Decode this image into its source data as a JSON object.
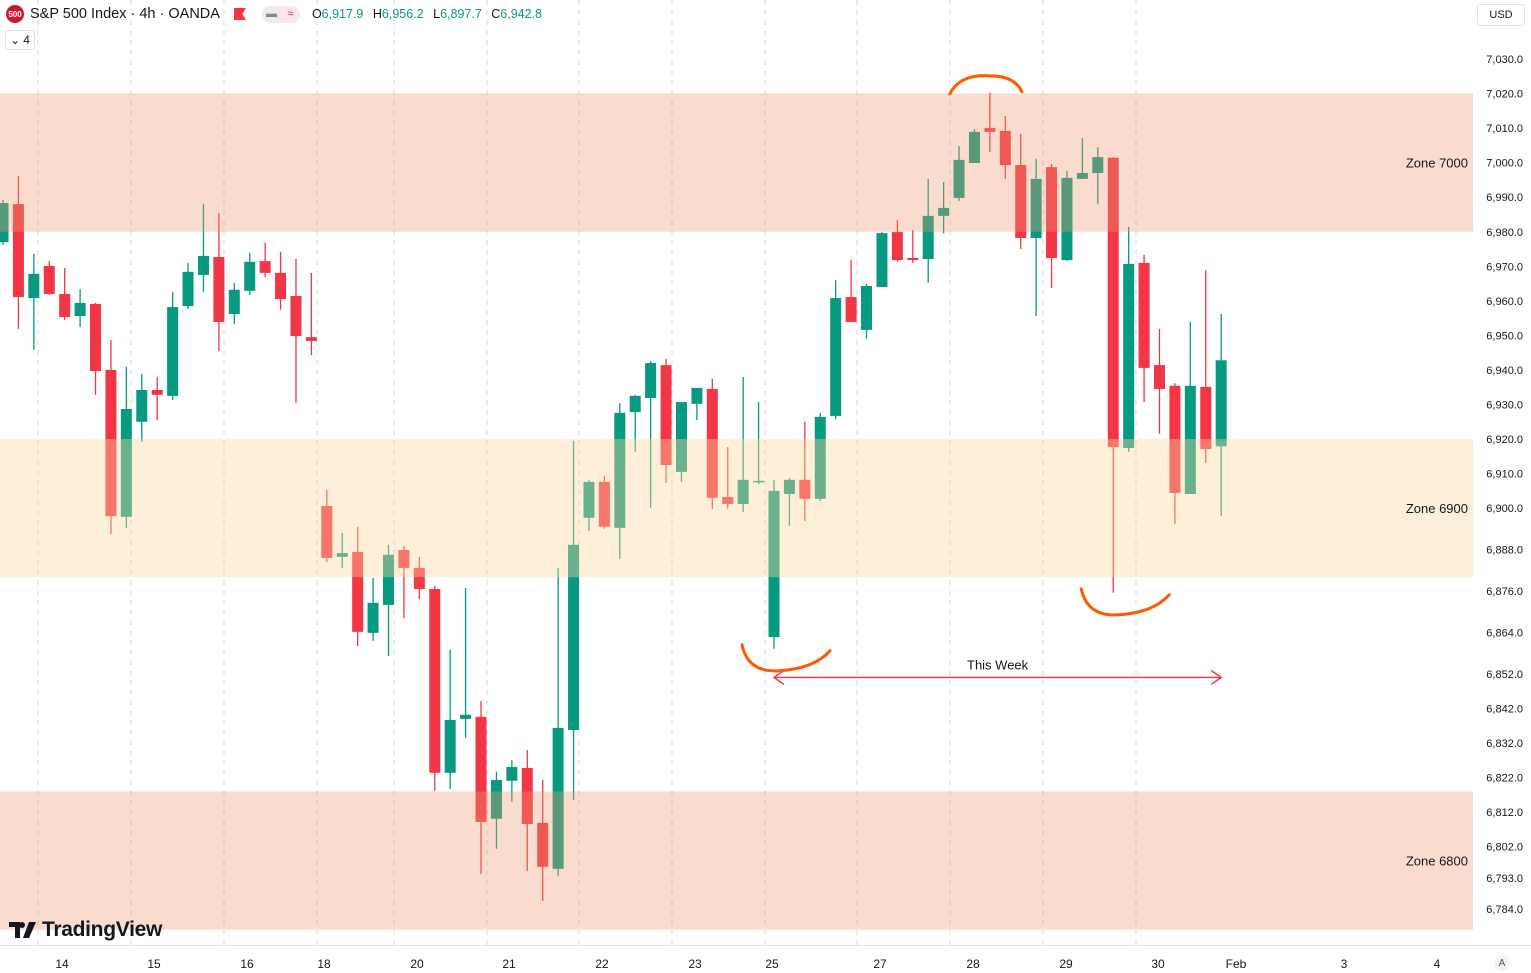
{
  "header": {
    "logo_text": "500",
    "title": "S&P 500 Index · 4h · OANDA",
    "ohlc": [
      {
        "key": "O",
        "value": "6,917.9"
      },
      {
        "key": "H",
        "value": "6,956.2"
      },
      {
        "key": "L",
        "value": "6,897.7"
      },
      {
        "key": "C",
        "value": "6,942.8"
      }
    ],
    "legend_toggle": "4",
    "currency": "USD",
    "auto_scale": "A",
    "brand": "TradingView"
  },
  "colors": {
    "up": "#089981",
    "down": "#F23645",
    "annotation": "#FF5A00",
    "arrow": "#F23645",
    "zone_upper": "#F9DCCD",
    "zone_mid": "#FEF0DB"
  },
  "chart_data": {
    "type": "candlestick",
    "symbol": "S&P 500 Index",
    "interval": "4h",
    "source": "OANDA",
    "y_ticks": [
      7030.0,
      7020.0,
      7010.0,
      7000.0,
      6990.0,
      6980.0,
      6970.0,
      6960.0,
      6950.0,
      6940.0,
      6930.0,
      6920.0,
      6910.0,
      6900.0,
      6888.0,
      6876.0,
      6864.0,
      6852.0,
      6842.0,
      6832.0,
      6822.0,
      6812.0,
      6802.0,
      6793.0,
      6784.0
    ],
    "x_ticks": [
      "14",
      "15",
      "16",
      "18",
      "20",
      "21",
      "22",
      "23",
      "25",
      "27",
      "28",
      "29",
      "30",
      "Feb",
      "3",
      "4"
    ],
    "grid": "vertical dashed",
    "candles": [
      [
        6977.0,
        6989.2,
        6976.2,
        6988.3
      ],
      [
        6988.0,
        6996.1,
        6951.9,
        6961.1
      ],
      [
        6960.8,
        6973.6,
        6945.8,
        6967.8
      ],
      [
        6970.1,
        6971.5,
        6961.7,
        6962.0
      ],
      [
        6962.0,
        6969.5,
        6954.5,
        6955.3
      ],
      [
        6955.6,
        6963.4,
        6952.4,
        6959.4
      ],
      [
        6959.1,
        6959.4,
        6932.8,
        6939.7
      ],
      [
        6940.0,
        6948.7,
        6892.5,
        6897.7
      ],
      [
        6897.5,
        6940.9,
        6894.3,
        6928.7
      ],
      [
        6925.0,
        6938.8,
        6919.2,
        6934.2
      ],
      [
        6934.2,
        6938.0,
        6925.5,
        6932.8
      ],
      [
        6932.5,
        6962.6,
        6931.3,
        6958.2
      ],
      [
        6958.5,
        6971.0,
        6957.7,
        6968.4
      ],
      [
        6967.5,
        6988.0,
        6962.6,
        6973.0
      ],
      [
        6972.7,
        6985.4,
        6945.5,
        6953.9
      ],
      [
        6956.2,
        6965.2,
        6953.3,
        6963.2
      ],
      [
        6962.9,
        6973.9,
        6961.7,
        6971.3
      ],
      [
        6971.5,
        6976.8,
        6966.9,
        6968.1
      ],
      [
        6968.1,
        6974.2,
        6957.4,
        6960.5
      ],
      [
        6961.4,
        6972.1,
        6930.4,
        6949.8
      ],
      [
        6949.5,
        6968.1,
        6944.3,
        6948.4
      ],
      [
        6900.6,
        6905.3,
        6884.4,
        6885.6
      ],
      [
        6885.9,
        6892.8,
        6882.7,
        6887.0
      ],
      [
        6887.3,
        6894.6,
        6860.1,
        6864.2
      ],
      [
        6863.9,
        6879.8,
        6861.6,
        6872.6
      ],
      [
        6872.0,
        6889.4,
        6857.2,
        6886.5
      ],
      [
        6887.9,
        6889.1,
        6868.2,
        6882.7
      ],
      [
        6882.7,
        6885.9,
        6873.7,
        6876.6
      ],
      [
        6876.6,
        6877.5,
        6818.2,
        6823.4
      ],
      [
        6823.4,
        6859.0,
        6818.7,
        6838.7
      ],
      [
        6839.0,
        6876.9,
        6833.5,
        6840.2
      ],
      [
        6839.6,
        6844.2,
        6794.1,
        6809.2
      ],
      [
        6810.1,
        6823.7,
        6801.4,
        6821.3
      ],
      [
        6821.1,
        6827.1,
        6815.0,
        6825.1
      ],
      [
        6824.8,
        6830.0,
        6795.0,
        6808.6
      ],
      [
        6808.9,
        6821.3,
        6786.3,
        6796.2
      ],
      [
        6795.6,
        6882.7,
        6793.6,
        6836.4
      ],
      [
        6835.8,
        6919.5,
        6815.6,
        6889.4
      ],
      [
        6897.2,
        6908.2,
        6893.4,
        6907.6
      ],
      [
        6907.6,
        6909.3,
        6894.0,
        6894.6
      ],
      [
        6894.3,
        6930.4,
        6885.3,
        6927.6
      ],
      [
        6927.8,
        6932.8,
        6916.3,
        6932.5
      ],
      [
        6931.9,
        6942.6,
        6900.1,
        6942.0
      ],
      [
        6941.4,
        6943.2,
        6907.3,
        6912.5
      ],
      [
        6910.5,
        6930.7,
        6907.6,
        6930.7
      ],
      [
        6930.2,
        6934.8,
        6925.5,
        6934.8
      ],
      [
        6934.5,
        6937.4,
        6899.8,
        6903.0
      ],
      [
        6903.2,
        6917.7,
        6899.8,
        6901.2
      ],
      [
        6901.2,
        6938.0,
        6898.9,
        6908.2
      ],
      [
        6907.6,
        6930.7,
        6907.0,
        6907.9
      ],
      [
        6862.7,
        6908.2,
        6859.3,
        6905.0
      ],
      [
        6904.1,
        6908.7,
        6894.9,
        6908.2
      ],
      [
        6908.2,
        6925.0,
        6896.3,
        6902.7
      ],
      [
        6902.7,
        6927.6,
        6902.1,
        6926.4
      ],
      [
        6926.7,
        6966.0,
        6925.8,
        6960.8
      ],
      [
        6961.1,
        6971.8,
        6953.9,
        6953.9
      ],
      [
        6951.6,
        6964.9,
        6949.0,
        6964.3
      ],
      [
        6964.0,
        6979.9,
        6964.0,
        6979.6
      ],
      [
        6979.9,
        6983.4,
        6971.3,
        6971.8
      ],
      [
        6972.4,
        6980.5,
        6971.0,
        6971.8
      ],
      [
        6972.1,
        6995.3,
        6965.2,
        6984.6
      ],
      [
        6984.6,
        6994.4,
        6979.6,
        6986.9
      ],
      [
        6989.8,
        7004.8,
        6988.9,
        7000.8
      ],
      [
        6999.9,
        7009.7,
        6999.9,
        7008.9
      ],
      [
        7010.0,
        7020.2,
        7003.1,
        7008.9
      ],
      [
        7009.2,
        7013.5,
        6995.3,
        6999.3
      ],
      [
        6999.3,
        7008.3,
        6975.0,
        6978.2
      ],
      [
        6978.2,
        7001.1,
        6955.6,
        6995.3
      ],
      [
        6998.7,
        6999.6,
        6963.7,
        6972.4
      ],
      [
        6971.8,
        6997.6,
        6971.5,
        6995.6
      ],
      [
        6995.3,
        7007.1,
        6995.3,
        6997.0
      ],
      [
        6997.0,
        7004.5,
        6988.0,
        7001.6
      ],
      [
        7001.4,
        7001.6,
        6875.5,
        6917.7
      ],
      [
        6917.4,
        6981.4,
        6916.3,
        6970.7
      ],
      [
        6971.0,
        6973.3,
        6930.7,
        6940.6
      ],
      [
        6941.4,
        6951.9,
        6921.5,
        6934.5
      ],
      [
        6935.4,
        6936.2,
        6895.4,
        6904.4
      ],
      [
        6904.1,
        6953.9,
        6904.1,
        6935.4
      ],
      [
        6935.1,
        6968.9,
        6913.1,
        6917.1
      ],
      [
        6917.9,
        6956.2,
        6897.7,
        6942.8
      ]
    ],
    "candle_format": [
      "open",
      "high",
      "low",
      "close"
    ],
    "zones": [
      {
        "label": "Zone 7000",
        "from": 6980,
        "to": 7020,
        "color": "zone_upper"
      },
      {
        "label": "Zone 6900",
        "from": 6880,
        "to": 6920,
        "color": "zone_mid"
      },
      {
        "label": "Zone 6800",
        "from": 6778,
        "to": 6818,
        "color": "zone_upper"
      }
    ],
    "annotations": {
      "range_label": "This Week",
      "range_from_candle": 51,
      "range_to_candle": 80,
      "range_price": 6851,
      "swing_marks": [
        {
          "candle": 51,
          "kind": "low"
        },
        {
          "candle": 65,
          "kind": "high"
        },
        {
          "candle": 73,
          "kind": "low"
        }
      ]
    }
  }
}
